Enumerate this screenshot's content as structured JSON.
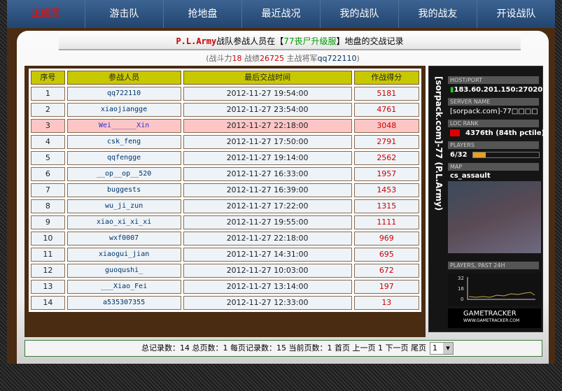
{
  "nav": {
    "items": [
      "正规军",
      "游击队",
      "抢地盘",
      "最近战况",
      "我的战队",
      "我的战友",
      "开设战队"
    ],
    "active": 0
  },
  "title": {
    "team": "P.L.Army",
    "mid": "战队参战人员在【",
    "server": "77丧尸升级服",
    "end": "】地盘的交战记录"
  },
  "subtitle": {
    "p1": "(战斗力",
    "power": "18",
    "p2": " 战绩",
    "record": "26725",
    "p3": " 主战将军",
    "general": "qq722110",
    "p4": ")"
  },
  "table": {
    "headers": [
      "序号",
      "参战人员",
      "最后交战时间",
      "作战得分"
    ],
    "rows": [
      [
        "1",
        "qq722110",
        "2012-11-27 19:54:00",
        "5181"
      ],
      [
        "2",
        "xiaojiangge",
        "2012-11-27 23:54:00",
        "4761"
      ],
      [
        "3",
        "Wei______Xin",
        "2012-11-27 22:18:00",
        "3048"
      ],
      [
        "4",
        "csk_feng",
        "2012-11-27 17:50:00",
        "2791"
      ],
      [
        "5",
        "qqfengge",
        "2012-11-27 19:14:00",
        "2562"
      ],
      [
        "6",
        "__op__op__520",
        "2012-11-27 16:33:00",
        "1957"
      ],
      [
        "7",
        "buggests",
        "2012-11-27 16:39:00",
        "1453"
      ],
      [
        "8",
        "wu_ji_zun",
        "2012-11-27 17:22:00",
        "1315"
      ],
      [
        "9",
        "xiao_xi_xi_xi",
        "2012-11-27 19:55:00",
        "1111"
      ],
      [
        "10",
        "wxf0007",
        "2012-11-27 22:18:00",
        "969"
      ],
      [
        "11",
        "xiaogui_jian",
        "2012-11-27 14:31:00",
        "695"
      ],
      [
        "12",
        "guoqushi_",
        "2012-11-27 10:03:00",
        "672"
      ],
      [
        "13",
        "___Xiao_Fei",
        "2012-11-27 13:14:00",
        "197"
      ],
      [
        "14",
        "a535307355",
        "2012-11-27 12:33:00",
        "13"
      ]
    ],
    "highlight_row": 2
  },
  "tracker": {
    "vertical": "[sorpack.com]-77        (P.L.Army)",
    "host_label": "HOST/PORT",
    "host": "183.60.201.150:27020",
    "name_label": "SERVER NAME",
    "name": "[sorpack.com]-77□□□□",
    "rank_label": "LOC   RANK",
    "rank": "4376th (84th pctile)",
    "players_label": "PLAYERS",
    "players": "6/32",
    "players_fraction": 0.1875,
    "map_label": "MAP",
    "map": "cs_assault",
    "history_label": "PLAYERS, PAST 24H",
    "history_ticks": [
      "32",
      "16",
      "0"
    ],
    "logo": "GAMETRACKER",
    "logo_url": "WWW.GAMETRACKER.COM"
  },
  "pagination": {
    "text": "总记录数：14 总页数：1 每页记录数：15 当前页数：1 首页 上一页 1 下一页 尾页",
    "select": "1"
  }
}
